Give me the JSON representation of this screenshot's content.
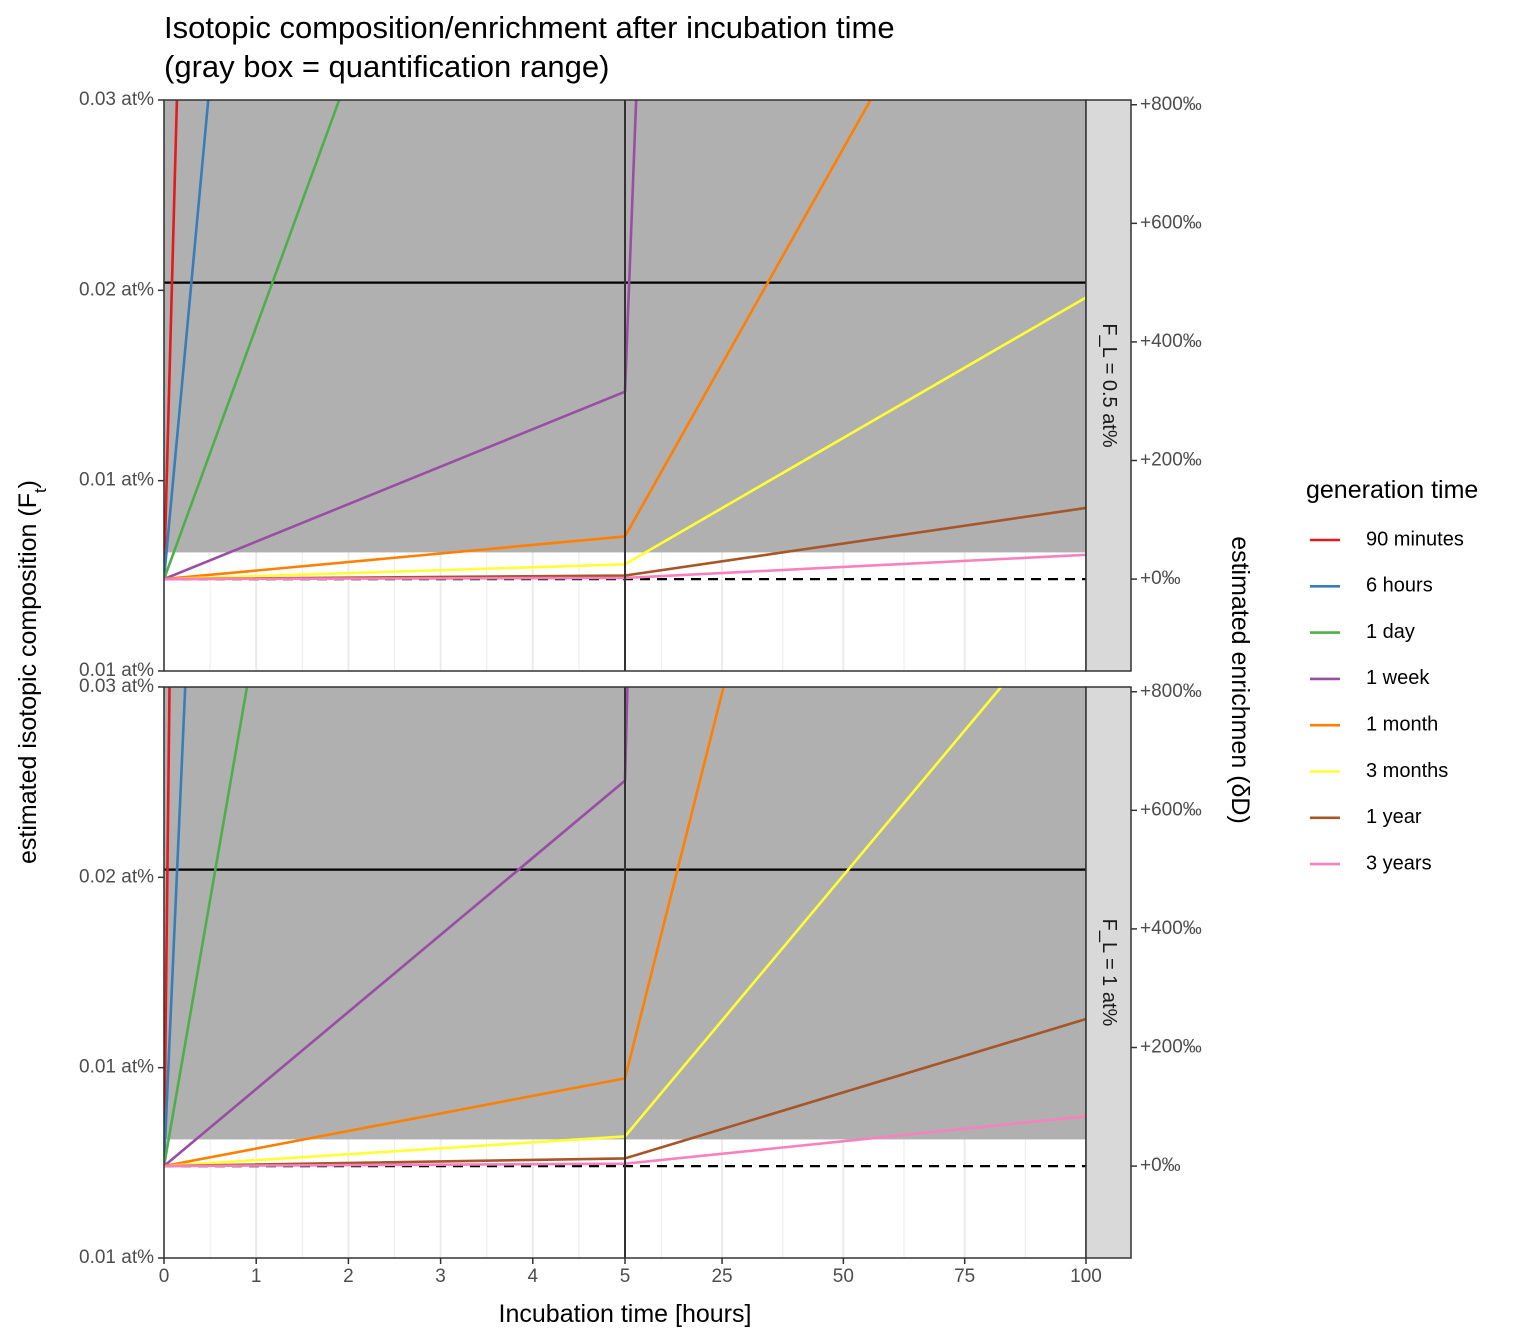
{
  "chart_data": {
    "type": "line",
    "title": "Isotopic composition/enrichment after incubation time",
    "subtitle": "(gray box = quantification range)",
    "xlabel": "Incubation time [hours]",
    "ylabel": "estimated isotopic composition (F",
    "ylabel_sub": "t",
    "ylabel_close": ")",
    "ylabel_right": "estimated enrichmen (δD)",
    "x_segments": [
      {
        "xlim": [
          0,
          5
        ],
        "ticks": [
          0,
          1,
          2,
          3,
          4,
          5
        ],
        "tick_labels": [
          "0",
          "1",
          "2",
          "3",
          "4",
          "5"
        ]
      },
      {
        "xlim": [
          5,
          100
        ],
        "ticks": [
          25,
          50,
          75,
          100
        ],
        "tick_labels": [
          "25",
          "50",
          "75",
          "100"
        ]
      }
    ],
    "ylim_permil": [
      -155,
      808
    ],
    "y_ticks_left": [
      {
        "value": -155,
        "label": "0.01 at%"
      },
      {
        "value": 166,
        "label": "0.01 at%"
      },
      {
        "value": 487,
        "label": "0.02 at%"
      },
      {
        "value": 808,
        "label": "0.03 at%"
      }
    ],
    "y_ticks_right": [
      {
        "value": 0,
        "label": "+0‰"
      },
      {
        "value": 200,
        "label": "+200‰"
      },
      {
        "value": 400,
        "label": "+400‰"
      },
      {
        "value": 600,
        "label": "+600‰"
      },
      {
        "value": 800,
        "label": "+800‰"
      }
    ],
    "quantification_range_permil": [
      45,
      808
    ],
    "reference_lines_permil": {
      "dashed": 0,
      "solid": 500
    },
    "legend": {
      "title": "generation time",
      "placement": "right",
      "items": [
        {
          "name": "90 minutes",
          "color": "#e41a1c"
        },
        {
          "name": "6 hours",
          "color": "#377eb8"
        },
        {
          "name": "1 day",
          "color": "#4daf4a"
        },
        {
          "name": "1 week",
          "color": "#984ea3"
        },
        {
          "name": "1 month",
          "color": "#ff7f00"
        },
        {
          "name": "3 months",
          "color": "#ffff33"
        },
        {
          "name": "1 year",
          "color": "#a65628"
        },
        {
          "name": "3 years",
          "color": "#f781bf"
        }
      ]
    },
    "panels": [
      {
        "strip": "F_L = 0.5 at%",
        "series": [
          {
            "name": "90 minutes",
            "points": [
              [
                0,
                0
              ],
              [
                0.14,
                808
              ]
            ]
          },
          {
            "name": "6 hours",
            "points": [
              [
                0,
                0
              ],
              [
                0.48,
                808
              ]
            ]
          },
          {
            "name": "1 day",
            "points": [
              [
                0,
                0
              ],
              [
                1.9,
                808
              ]
            ]
          },
          {
            "name": "1 week",
            "points": [
              [
                0,
                0
              ],
              [
                5,
                316
              ],
              [
                7.3,
                808
              ]
            ]
          },
          {
            "name": "1 month",
            "points": [
              [
                0,
                0
              ],
              [
                5,
                72
              ],
              [
                55.6,
                808
              ]
            ]
          },
          {
            "name": "3 months",
            "points": [
              [
                0,
                0
              ],
              [
                5,
                25
              ],
              [
                100,
                475
              ]
            ]
          },
          {
            "name": "1 year",
            "points": [
              [
                0,
                0
              ],
              [
                5,
                6
              ],
              [
                100,
                120
              ]
            ]
          },
          {
            "name": "3 years",
            "points": [
              [
                0,
                0
              ],
              [
                5,
                2
              ],
              [
                100,
                41
              ]
            ]
          }
        ]
      },
      {
        "strip": "F_L = 1 at%",
        "series": [
          {
            "name": "90 minutes",
            "points": [
              [
                0,
                0
              ],
              [
                0.06,
                808
              ]
            ]
          },
          {
            "name": "6 hours",
            "points": [
              [
                0,
                0
              ],
              [
                0.23,
                808
              ]
            ]
          },
          {
            "name": "1 day",
            "points": [
              [
                0,
                0
              ],
              [
                0.9,
                808
              ]
            ]
          },
          {
            "name": "1 week",
            "points": [
              [
                0,
                0
              ],
              [
                5,
                650
              ],
              [
                5.5,
                808
              ]
            ]
          },
          {
            "name": "1 month",
            "points": [
              [
                0,
                0
              ],
              [
                5,
                148
              ],
              [
                25.3,
                808
              ]
            ]
          },
          {
            "name": "3 months",
            "points": [
              [
                0,
                0
              ],
              [
                5,
                50
              ],
              [
                82.5,
                808
              ]
            ]
          },
          {
            "name": "1 year",
            "points": [
              [
                0,
                0
              ],
              [
                5,
                13
              ],
              [
                100,
                248
              ]
            ]
          },
          {
            "name": "3 years",
            "points": [
              [
                0,
                0
              ],
              [
                5,
                4
              ],
              [
                100,
                84
              ]
            ]
          }
        ]
      }
    ]
  }
}
